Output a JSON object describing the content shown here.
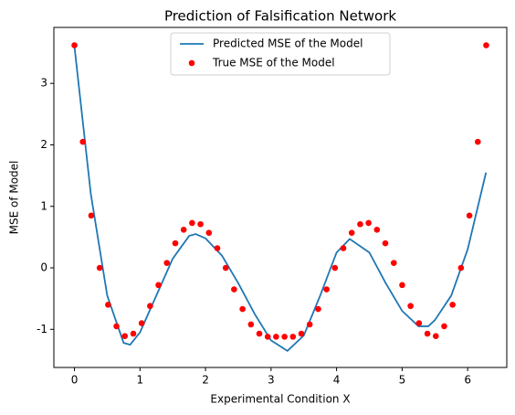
{
  "chart_data": {
    "type": "line-scatter",
    "title": "Prediction of Falsification Network",
    "xlabel": "Experimental Condition X",
    "ylabel": "MSE of Model",
    "xlim": [
      -0.314,
      6.597
    ],
    "ylim": [
      -1.62,
      3.91
    ],
    "xticks": [
      0,
      1,
      2,
      3,
      4,
      5,
      6
    ],
    "yticks": [
      -1,
      0,
      1,
      2,
      3
    ],
    "legend": "upper center",
    "series": [
      {
        "name": "Predicted MSE of the Model",
        "kind": "line",
        "color": "#1f77b4",
        "x": [
          0,
          0.25,
          0.5,
          0.75,
          0.85,
          1.0,
          1.25,
          1.5,
          1.75,
          1.85,
          2.0,
          2.25,
          2.5,
          2.75,
          3.0,
          3.25,
          3.5,
          3.75,
          4.0,
          4.2,
          4.5,
          4.75,
          5.0,
          5.25,
          5.4,
          5.5,
          5.75,
          6.0,
          6.28
        ],
        "values": [
          3.6,
          1.2,
          -0.45,
          -1.22,
          -1.25,
          -1.05,
          -0.45,
          0.15,
          0.52,
          0.55,
          0.48,
          0.2,
          -0.25,
          -0.75,
          -1.18,
          -1.35,
          -1.1,
          -0.45,
          0.25,
          0.47,
          0.25,
          -0.25,
          -0.7,
          -0.95,
          -0.95,
          -0.85,
          -0.45,
          0.3,
          1.55
        ]
      },
      {
        "name": "True MSE of the Model",
        "kind": "scatter",
        "color": "#ff0000",
        "x": [
          0,
          0.128,
          0.256,
          0.385,
          0.513,
          0.641,
          0.769,
          0.898,
          1.026,
          1.154,
          1.282,
          1.41,
          1.539,
          1.667,
          1.795,
          1.923,
          2.052,
          2.18,
          2.308,
          2.436,
          2.565,
          2.693,
          2.821,
          2.949,
          3.077,
          3.206,
          3.334,
          3.462,
          3.59,
          3.719,
          3.847,
          3.975,
          4.103,
          4.231,
          4.36,
          4.488,
          4.616,
          4.744,
          4.873,
          5.001,
          5.129,
          5.257,
          5.386,
          5.514,
          5.642,
          5.77,
          5.898,
          6.027,
          6.155,
          6.283
        ],
        "values": [
          3.62,
          2.05,
          0.85,
          0.0,
          -0.6,
          -0.95,
          -1.11,
          -1.07,
          -0.9,
          -0.62,
          -0.28,
          0.08,
          0.4,
          0.62,
          0.73,
          0.71,
          0.57,
          0.32,
          0.0,
          -0.35,
          -0.67,
          -0.92,
          -1.07,
          -1.12,
          -1.12,
          -1.12,
          -1.12,
          -1.07,
          -0.92,
          -0.67,
          -0.35,
          0.0,
          0.32,
          0.57,
          0.71,
          0.73,
          0.62,
          0.4,
          0.08,
          -0.28,
          -0.62,
          -0.9,
          -1.07,
          -1.11,
          -0.95,
          -0.6,
          0.0,
          0.85,
          2.05,
          3.62
        ]
      }
    ]
  }
}
